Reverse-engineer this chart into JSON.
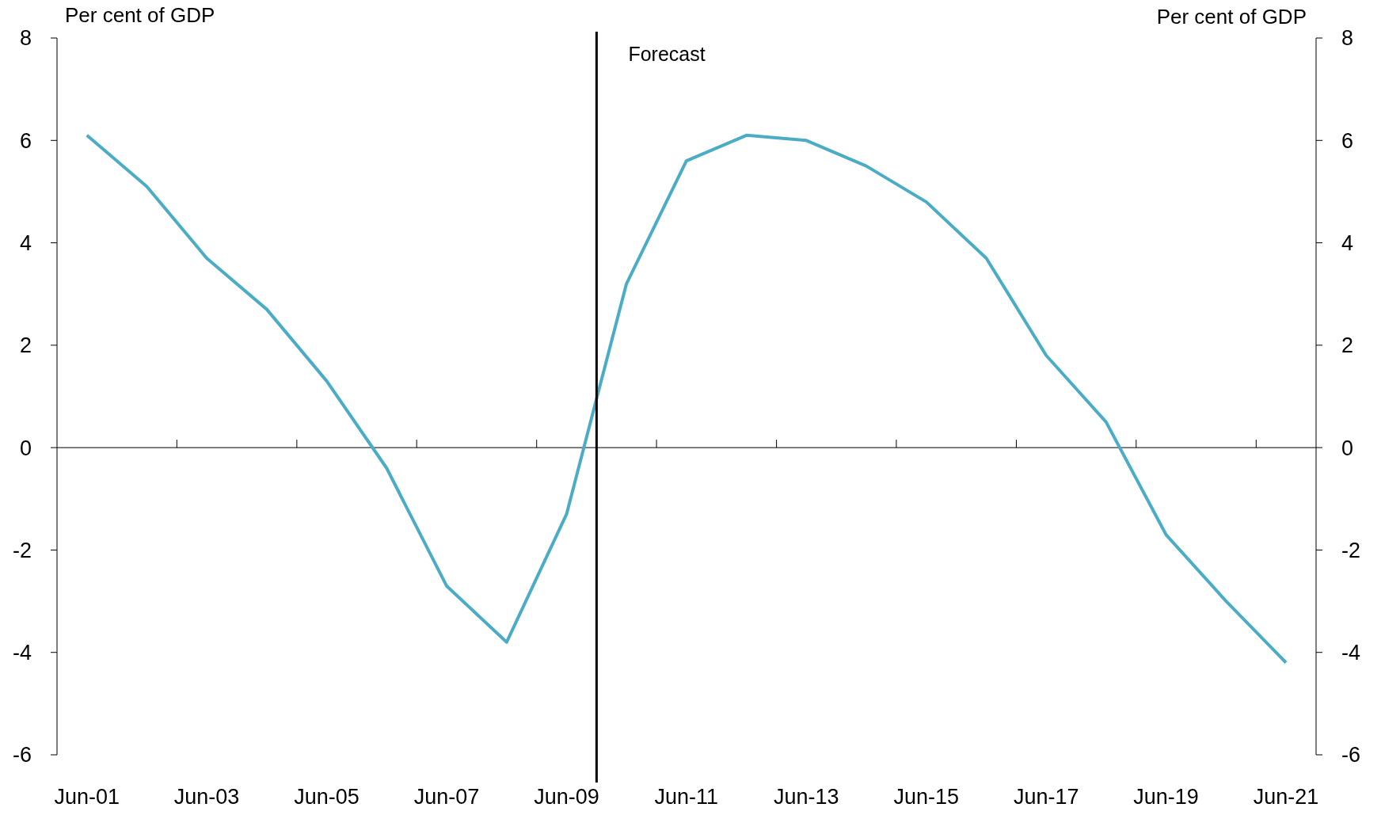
{
  "chart_data": {
    "type": "line",
    "ylabel": "Per cent of GDP",
    "y2label": "Per cent of GDP",
    "x": [
      "2001-06",
      "2002-06",
      "2003-06",
      "2004-06",
      "2005-06",
      "2006-06",
      "2007-06",
      "2008-06",
      "2009-06",
      "2010-06",
      "2011-06",
      "2012-06",
      "2013-06",
      "2014-06",
      "2015-06",
      "2016-06",
      "2017-06",
      "2018-06",
      "2019-06",
      "2020-06",
      "2021-06"
    ],
    "series": [
      {
        "color": "#4bacc6",
        "values": [
          6.1,
          5.1,
          3.7,
          2.7,
          1.3,
          -0.4,
          -2.7,
          -3.8,
          -1.3,
          3.2,
          5.6,
          6.1,
          6.0,
          5.5,
          4.8,
          3.7,
          1.8,
          0.5,
          -1.7,
          -3.0,
          -4.2
        ]
      }
    ],
    "xlim": [
      "2000-12",
      "2021-12"
    ],
    "xticks": [
      {
        "value": "2001-06",
        "label": "Jun-01"
      },
      {
        "value": "2002-12",
        "label": null
      },
      {
        "value": "2003-06",
        "label": "Jun-03"
      },
      {
        "value": "2004-12",
        "label": null
      },
      {
        "value": "2005-06",
        "label": "Jun-05"
      },
      {
        "value": "2006-12",
        "label": null
      },
      {
        "value": "2007-06",
        "label": "Jun-07"
      },
      {
        "value": "2008-12",
        "label": null
      },
      {
        "value": "2009-06",
        "label": "Jun-09"
      },
      {
        "value": "2010-12",
        "label": null
      },
      {
        "value": "2011-06",
        "label": "Jun-11"
      },
      {
        "value": "2012-12",
        "label": null
      },
      {
        "value": "2013-06",
        "label": "Jun-13"
      },
      {
        "value": "2014-12",
        "label": null
      },
      {
        "value": "2015-06",
        "label": "Jun-15"
      },
      {
        "value": "2016-12",
        "label": null
      },
      {
        "value": "2017-06",
        "label": "Jun-17"
      },
      {
        "value": "2018-12",
        "label": null
      },
      {
        "value": "2019-06",
        "label": "Jun-19"
      },
      {
        "value": "2020-12",
        "label": null
      },
      {
        "value": "2021-06",
        "label": "Jun-21"
      }
    ],
    "ylim": [
      -6,
      8
    ],
    "yticks": [
      -6,
      -4,
      -2,
      0,
      2,
      4,
      6,
      8
    ],
    "y2lim": [
      -6,
      8
    ],
    "y2ticks": [
      -6,
      -4,
      -2,
      0,
      2,
      4,
      6,
      8
    ],
    "ref_lines": [
      {
        "axis": "x",
        "value": "2009-12",
        "label": "Forecast",
        "color": "#000000"
      }
    ],
    "marker": "none",
    "line_style": "solid"
  }
}
